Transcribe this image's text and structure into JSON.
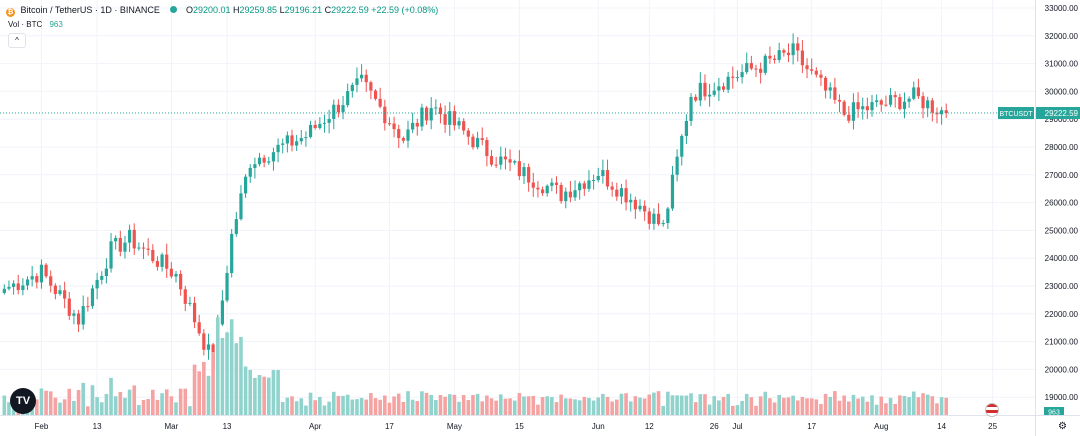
{
  "header": {
    "symbol_title": "Bitcoin / TetherUS · 1D · BINANCE",
    "open_label": "O",
    "open": "29200.01",
    "high_label": "H",
    "high": "29259.85",
    "low_label": "L",
    "low": "29196.21",
    "close_label": "C",
    "close": "29222.59",
    "change": "+22.59 (+0.08%)",
    "vol_label": "Vol · BTC",
    "vol_value": "963",
    "collapse_glyph": "^"
  },
  "price_scale": {
    "labels": [
      "33000.00",
      "32000.00",
      "31000.00",
      "30000.00",
      "29000.00",
      "28000.00",
      "27000.00",
      "26000.00",
      "25000.00",
      "24000.00",
      "23000.00",
      "22000.00",
      "21000.00",
      "20000.00",
      "19000.00"
    ],
    "symbol_tag": "BTCUSDT",
    "last_price": "29222.59",
    "volume_tag": "963"
  },
  "time_scale": {
    "labels": [
      "Feb",
      "13",
      "Mar",
      "13",
      "Apr",
      "17",
      "May",
      "15",
      "Jun",
      "12",
      "26",
      "Jul",
      "17",
      "Aug",
      "14",
      "25"
    ]
  },
  "icons": {
    "coin": "bitcoin-icon",
    "status_dot": "market-open-dot-icon",
    "logo": "tradingview-logo-icon",
    "flag": "us-flag-icon",
    "settings": "settings-icon"
  },
  "colors": {
    "up": "#26a69a",
    "down": "#ef5350",
    "up_volume": "#8fd3cc",
    "down_volume": "#f5a3a2",
    "last_price_line": "#26a69a"
  },
  "chart_data": {
    "type": "candlestick",
    "title": "Bitcoin / TetherUS · 1D · BINANCE",
    "y_range": [
      18500,
      33200
    ],
    "start_date": "2023-01-24",
    "ohlc_weekly_keypoints": [
      {
        "date": "2023-01-24",
        "close": 22900
      },
      {
        "date": "2023-02-01",
        "close": 23500
      },
      {
        "date": "2023-02-09",
        "close": 21800
      },
      {
        "date": "2023-02-16",
        "close": 24300
      },
      {
        "date": "2023-02-20",
        "close": 24700
      },
      {
        "date": "2023-03-02",
        "close": 23400
      },
      {
        "date": "2023-03-10",
        "close": 20200
      },
      {
        "date": "2023-03-14",
        "close": 24800
      },
      {
        "date": "2023-03-18",
        "close": 27500
      },
      {
        "date": "2023-03-30",
        "close": 28400
      },
      {
        "date": "2023-04-11",
        "close": 30300
      },
      {
        "date": "2023-04-20",
        "close": 28300
      },
      {
        "date": "2023-04-26",
        "close": 29500
      },
      {
        "date": "2023-05-09",
        "close": 27700
      },
      {
        "date": "2023-05-24",
        "close": 26300
      },
      {
        "date": "2023-06-01",
        "close": 27100
      },
      {
        "date": "2023-06-10",
        "close": 25900
      },
      {
        "date": "2023-06-15",
        "close": 25100
      },
      {
        "date": "2023-06-21",
        "close": 29900
      },
      {
        "date": "2023-07-01",
        "close": 30600
      },
      {
        "date": "2023-07-13",
        "close": 31400
      },
      {
        "date": "2023-07-24",
        "close": 29200
      },
      {
        "date": "2023-08-08",
        "close": 29800
      },
      {
        "date": "2023-08-15",
        "close": 29222.59
      }
    ],
    "last_close": 29222.59,
    "volume_last": 963
  }
}
